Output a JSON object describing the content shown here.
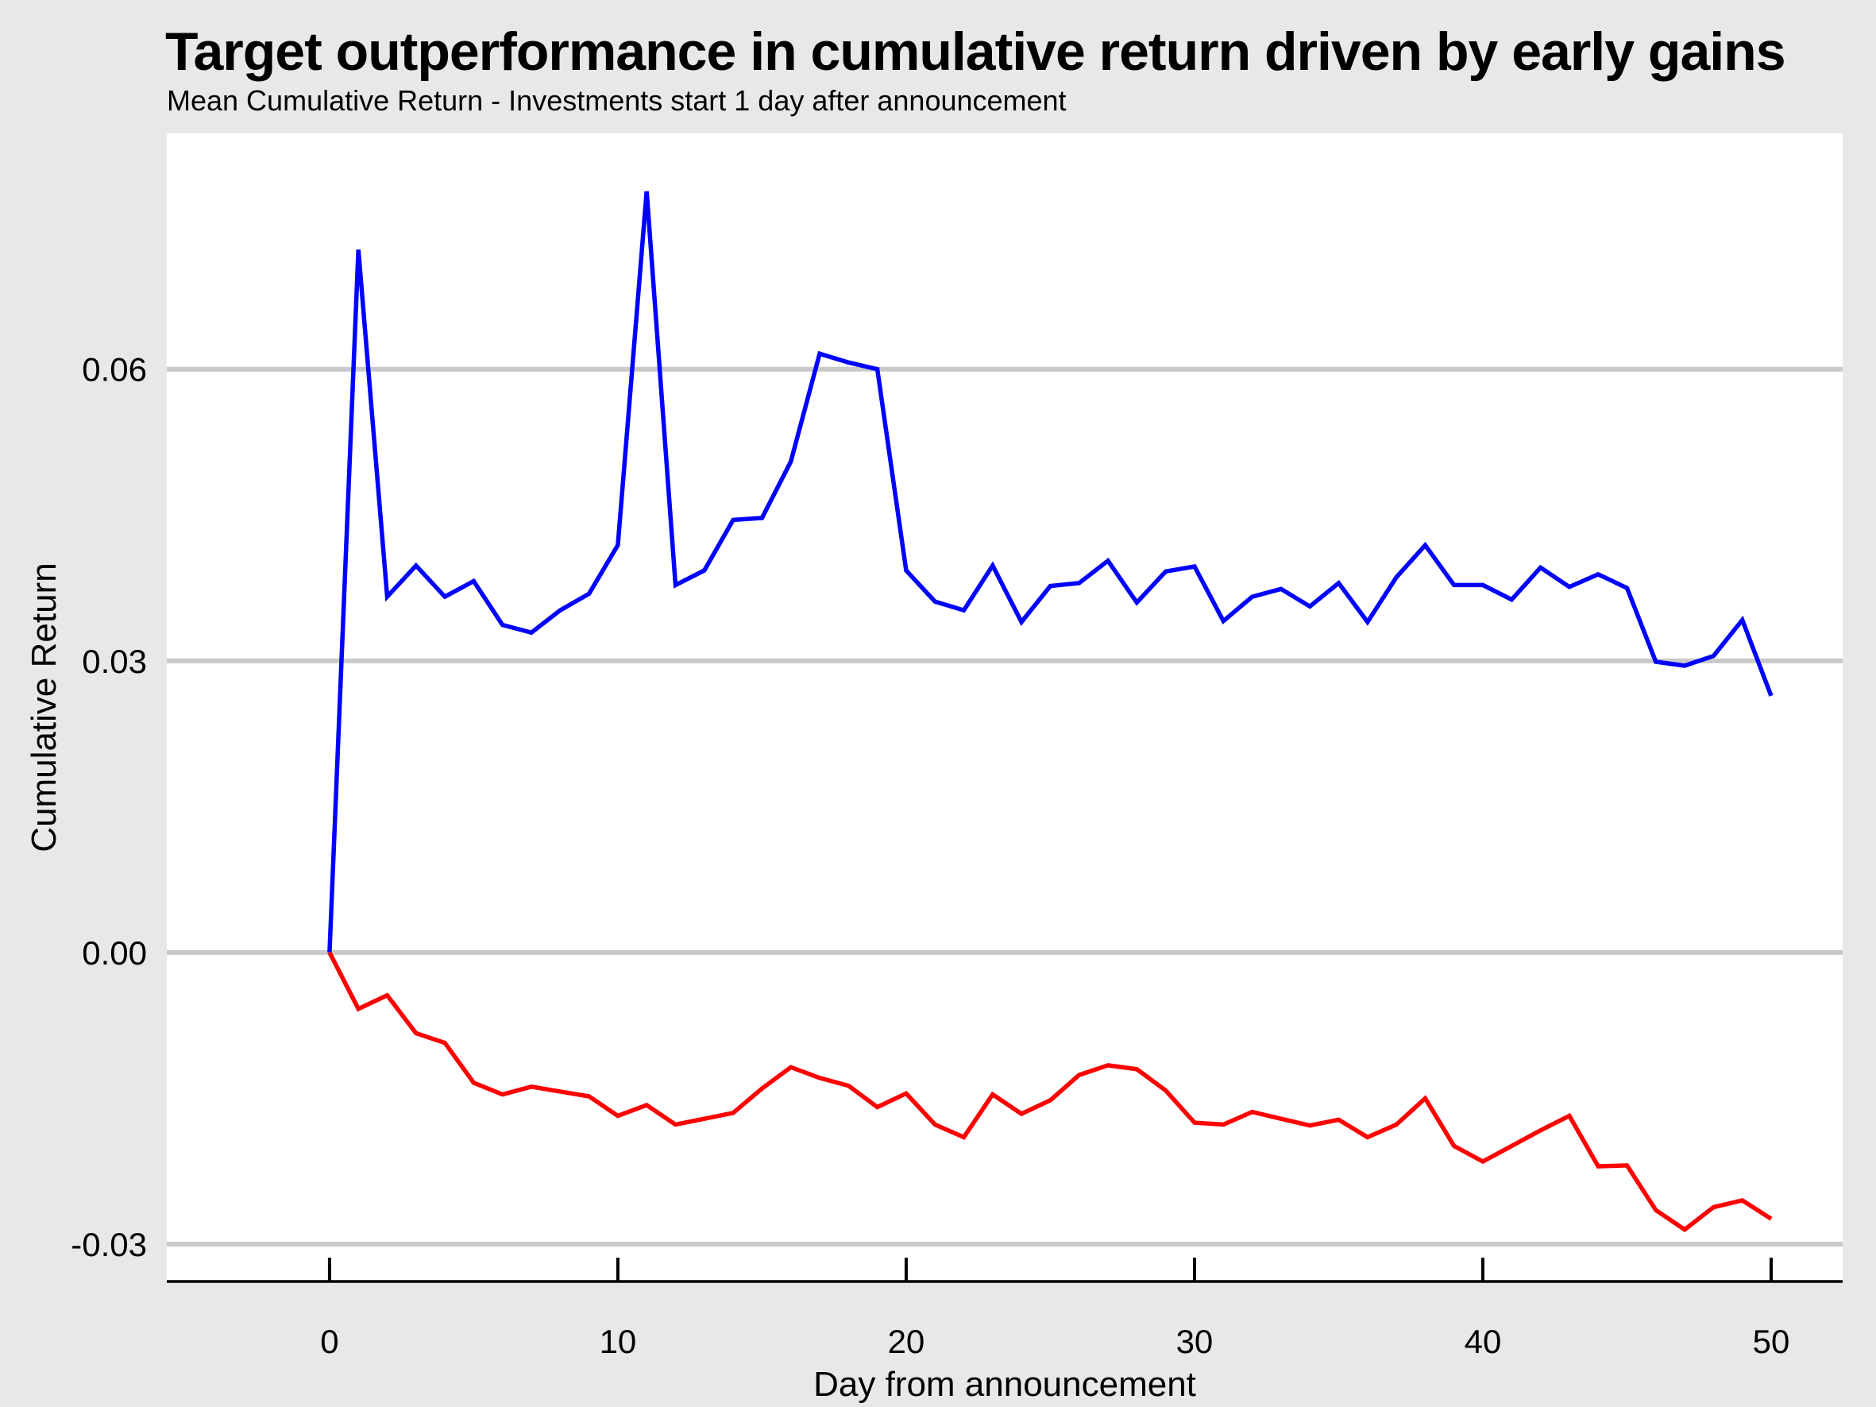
{
  "title": "Target outperformance in cumulative return driven by early gains",
  "subtitle": "Mean Cumulative Return - Investments start 1 day after announcement",
  "colors": {
    "background": "#E8E8E8",
    "panel": "#FFFFFF",
    "grid": "#C9C9C9",
    "axis": "#000000",
    "text": "#000000",
    "blue_series": "#0000FF",
    "red_series": "#FF0000"
  },
  "chart_data": {
    "type": "line",
    "title": "Target outperformance in cumulative return driven by early gains",
    "subtitle": "Mean Cumulative Return - Investments start 1 day after announcement",
    "xlabel": "Day from announcement",
    "ylabel": "Cumulative Return",
    "legend": "none",
    "grid": "horizontal-only",
    "xlim": [
      -5.645,
      52.48
    ],
    "ylim": [
      -0.03384,
      0.08425
    ],
    "x_ticks": [
      {
        "label": "0",
        "value": 0
      },
      {
        "label": "10",
        "value": 10
      },
      {
        "label": "20",
        "value": 20
      },
      {
        "label": "30",
        "value": 30
      },
      {
        "label": "40",
        "value": 40
      },
      {
        "label": "50",
        "value": 50
      }
    ],
    "y_ticks": [
      {
        "label": "0.06",
        "value": 0.06
      },
      {
        "label": "0.03",
        "value": 0.03
      },
      {
        "label": "0.00",
        "value": 0.0
      },
      {
        "label": "-0.03",
        "value": -0.03
      }
    ],
    "x": [
      0,
      1,
      2,
      3,
      4,
      5,
      6,
      7,
      8,
      9,
      10,
      11,
      12,
      13,
      14,
      15,
      16,
      17,
      18,
      19,
      20,
      21,
      22,
      23,
      24,
      25,
      26,
      27,
      28,
      29,
      30,
      31,
      32,
      33,
      34,
      35,
      36,
      37,
      38,
      39,
      40,
      41,
      42,
      43,
      44,
      45,
      46,
      47,
      48,
      49,
      50
    ],
    "series": [
      {
        "name": "blue-line",
        "color": "#0000FF",
        "values": [
          0.0,
          0.0723,
          0.0366,
          0.0398,
          0.0366,
          0.0382,
          0.0337,
          0.0329,
          0.0352,
          0.0369,
          0.0419,
          0.0783,
          0.0378,
          0.0393,
          0.0445,
          0.0447,
          0.0505,
          0.0616,
          0.0607,
          0.06,
          0.0393,
          0.0361,
          0.0352,
          0.0398,
          0.034,
          0.0377,
          0.038,
          0.0403,
          0.036,
          0.0392,
          0.0397,
          0.0341,
          0.0366,
          0.0374,
          0.0356,
          0.038,
          0.034,
          0.0386,
          0.0419,
          0.0378,
          0.0378,
          0.0363,
          0.0396,
          0.0376,
          0.0389,
          0.0375,
          0.0299,
          0.0295,
          0.0305,
          0.0342,
          0.0264
        ]
      },
      {
        "name": "red-line",
        "color": "#FF0000",
        "values": [
          0.0,
          -0.0058,
          -0.0044,
          -0.0083,
          -0.0093,
          -0.0134,
          -0.0146,
          -0.0138,
          -0.0143,
          -0.0148,
          -0.0168,
          -0.0157,
          -0.0177,
          -0.0171,
          -0.0165,
          -0.014,
          -0.0118,
          -0.0129,
          -0.0137,
          -0.0159,
          -0.0145,
          -0.0177,
          -0.019,
          -0.0146,
          -0.0166,
          -0.0152,
          -0.0126,
          -0.0116,
          -0.012,
          -0.0142,
          -0.0175,
          -0.0177,
          -0.0164,
          -0.0171,
          -0.0178,
          -0.0172,
          -0.019,
          -0.0177,
          -0.015,
          -0.0199,
          -0.0215,
          -0.0199,
          -0.0183,
          -0.0168,
          -0.022,
          -0.0219,
          -0.0265,
          -0.0285,
          -0.0262,
          -0.0255,
          -0.0274
        ]
      }
    ]
  }
}
